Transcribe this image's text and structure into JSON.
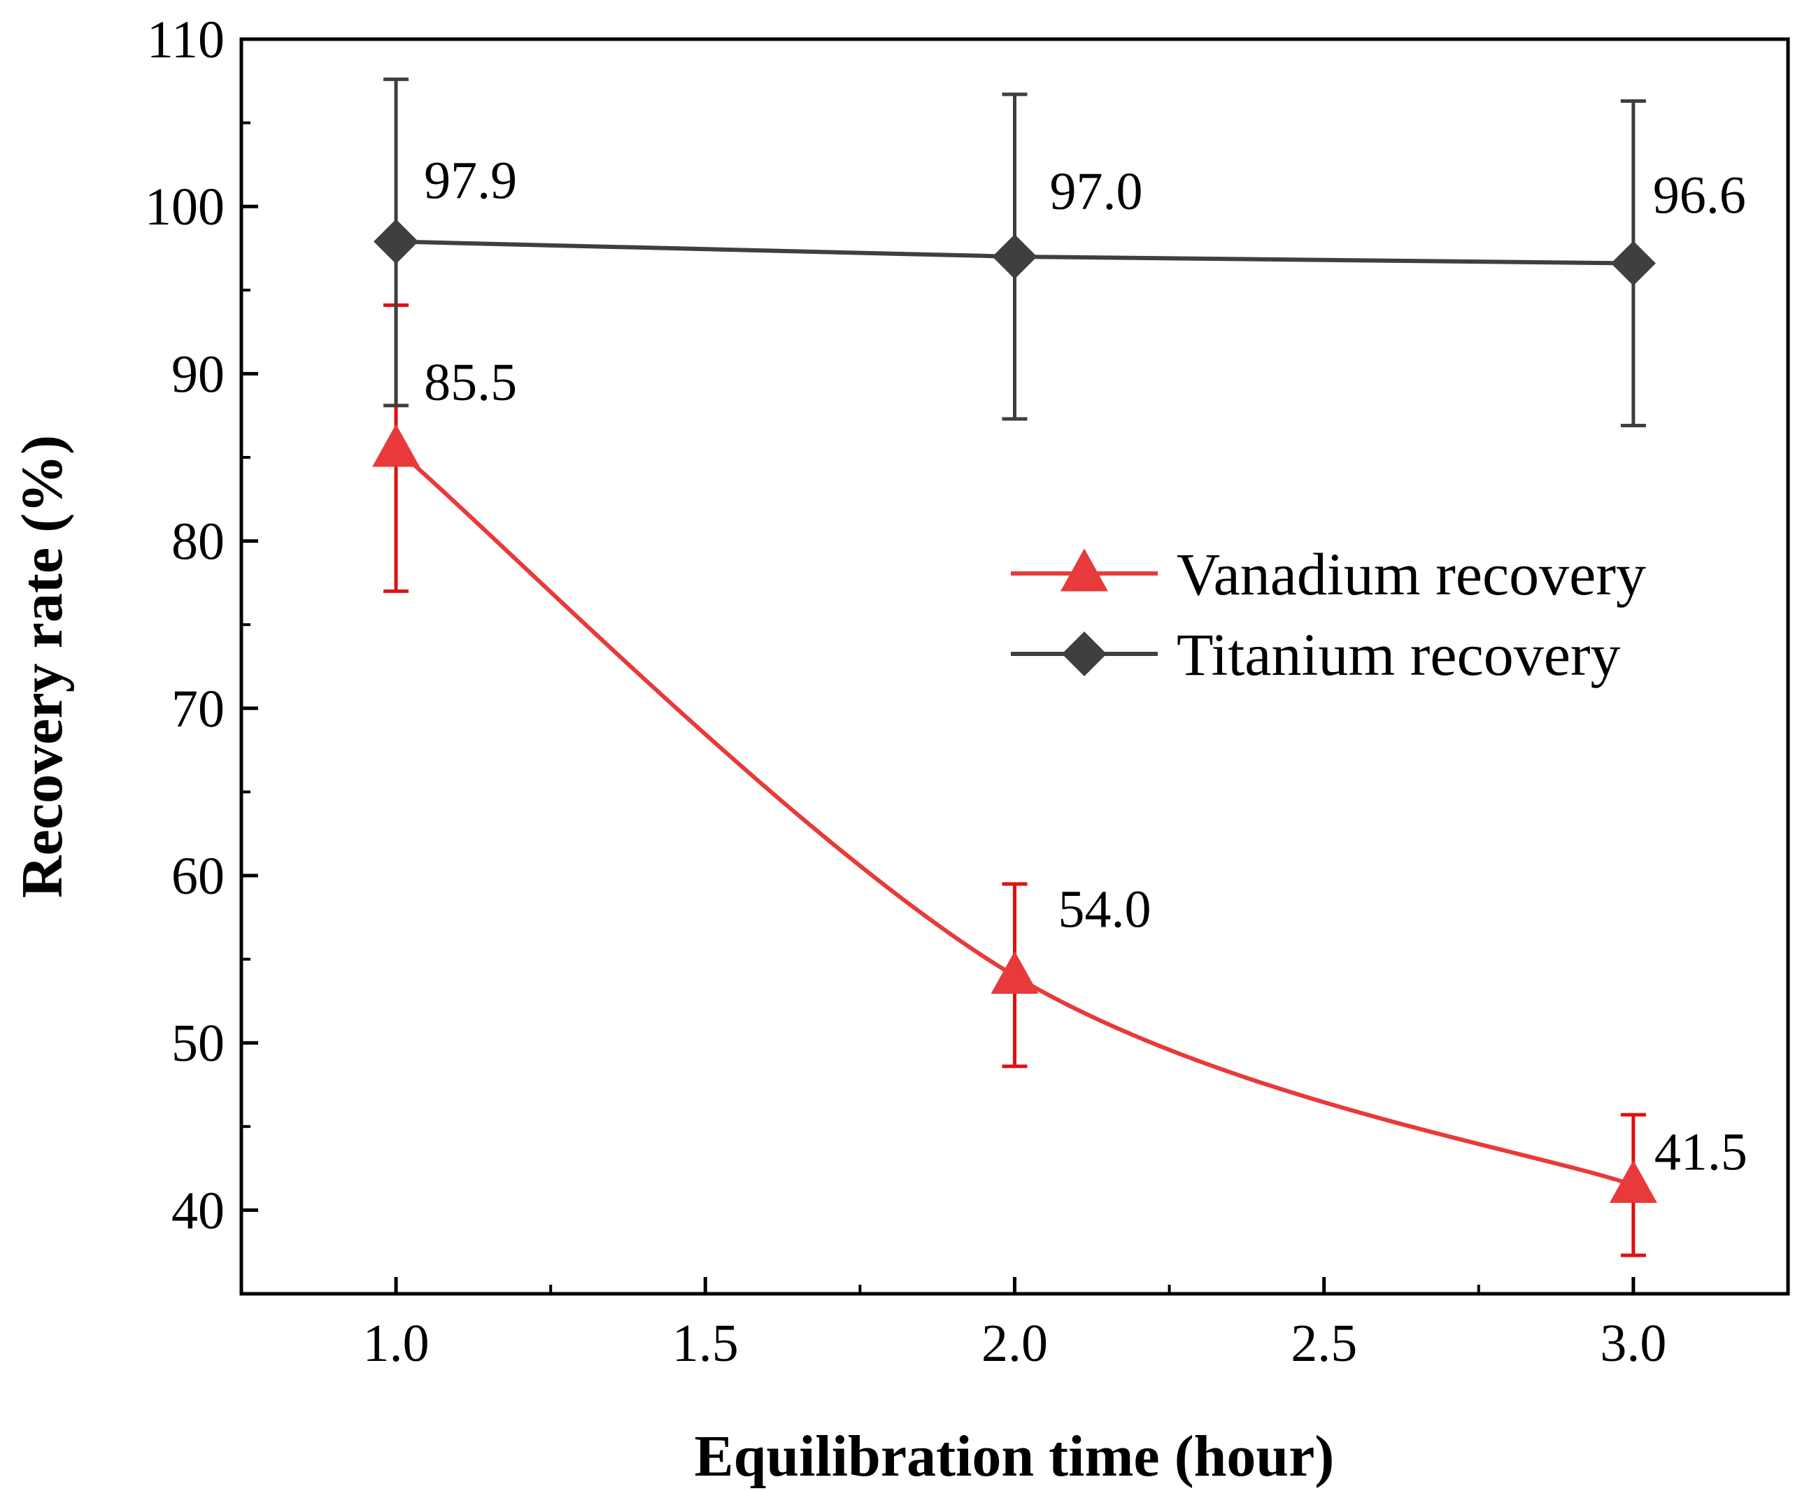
{
  "chart_data": {
    "type": "line",
    "title": "",
    "xlabel": "Equilibration time (hour)",
    "ylabel": "Recovery rate (%)",
    "xlim": [
      0.75,
      3.25
    ],
    "ylim": [
      35,
      110
    ],
    "xticks": [
      1.0,
      1.5,
      2.0,
      2.5,
      3.0
    ],
    "xtick_labels": [
      "1.0",
      "1.5",
      "2.0",
      "2.5",
      "3.0"
    ],
    "xminor": [
      1.25,
      1.75,
      2.25,
      2.75
    ],
    "yticks": [
      40,
      50,
      60,
      70,
      80,
      90,
      100,
      110
    ],
    "ytick_labels": [
      "40",
      "50",
      "60",
      "70",
      "80",
      "90",
      "100",
      "110"
    ],
    "yminor": [
      45,
      55,
      65,
      75,
      85,
      95,
      105
    ],
    "grid": false,
    "legend_position": "right-middle",
    "series": [
      {
        "name": "Vanadium recovery",
        "color": "#e83a3a",
        "error_color": "#e01010",
        "marker": "triangle",
        "smooth": true,
        "x": [
          1.0,
          2.0,
          3.0
        ],
        "y": [
          85.5,
          54.0,
          41.5
        ],
        "err_low": [
          77.0,
          48.6,
          37.3
        ],
        "err_high": [
          94.1,
          59.5,
          45.7
        ],
        "labels": [
          "85.5",
          "54.0",
          "41.5"
        ]
      },
      {
        "name": "Titanium recovery",
        "color": "#3f3f3f",
        "error_color": "#3f3f3f",
        "marker": "diamond",
        "smooth": false,
        "x": [
          1.0,
          2.0,
          3.0
        ],
        "y": [
          97.9,
          97.0,
          96.6
        ],
        "err_low": [
          88.1,
          87.3,
          86.9
        ],
        "err_high": [
          107.6,
          106.7,
          106.3
        ],
        "labels": [
          "97.9",
          "97.0",
          "96.6"
        ]
      }
    ]
  }
}
